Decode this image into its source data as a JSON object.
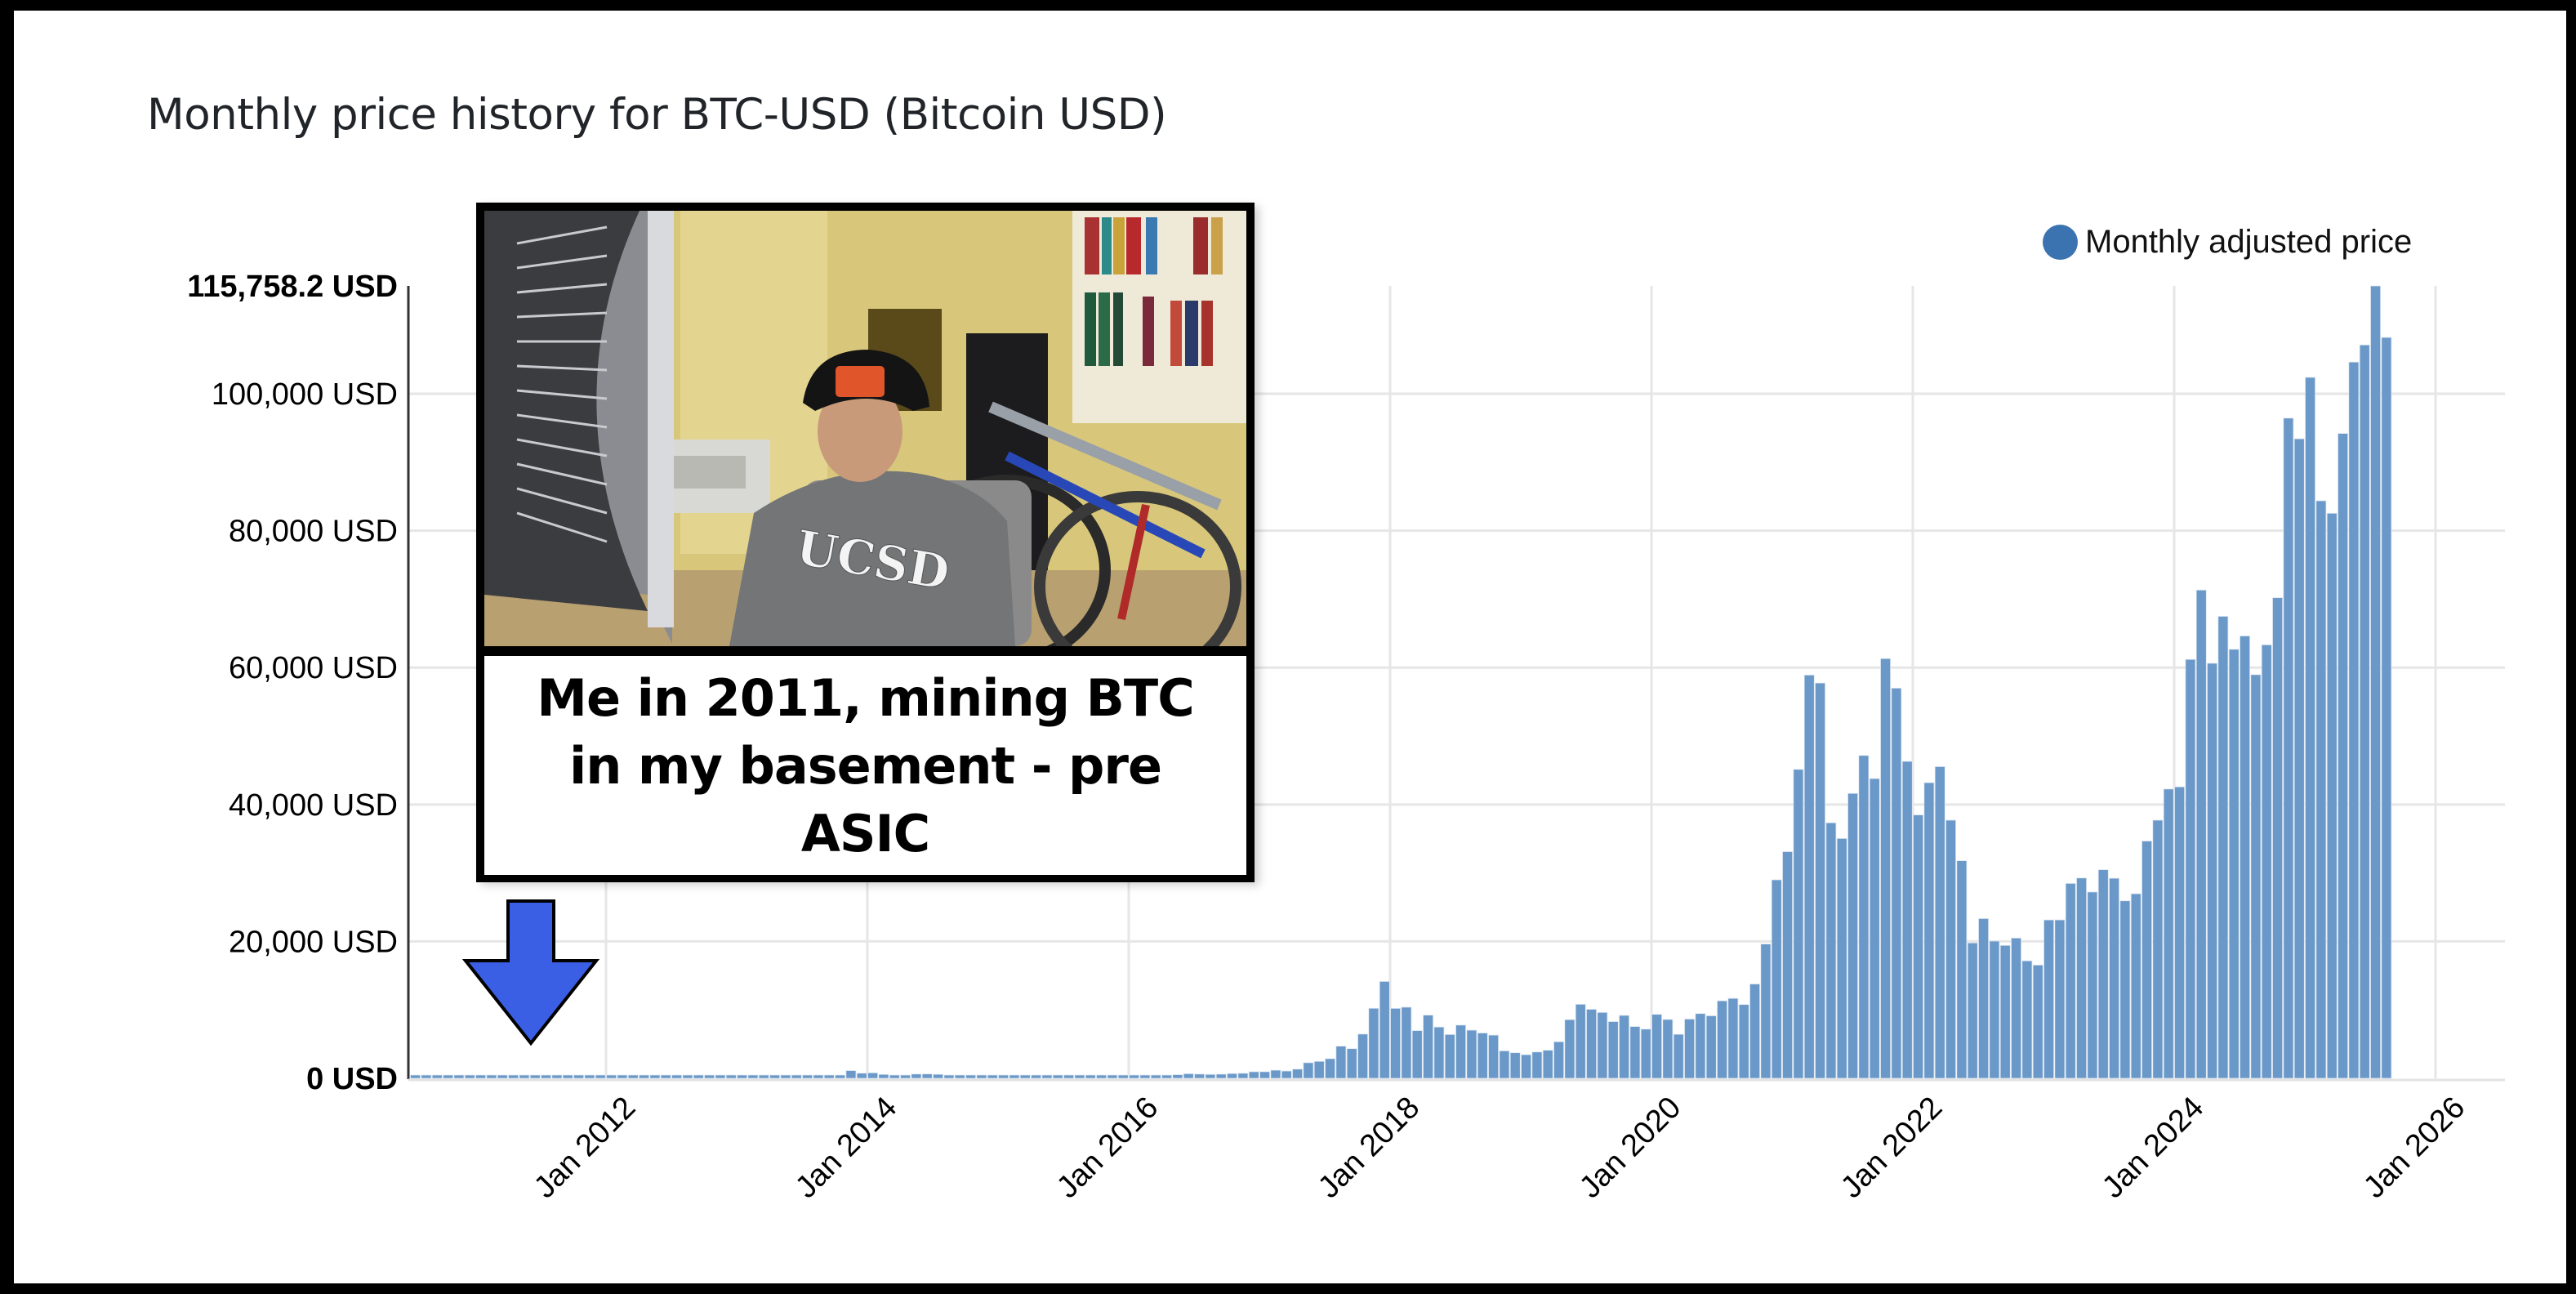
{
  "chart_title": "Monthly price history for BTC-USD (Bitcoin USD)",
  "legend": {
    "label": "Monthly adjusted price",
    "color": "#3b73b0"
  },
  "annotation": {
    "caption": "Me in 2011, mining BTC in my basement - pre ASIC",
    "photo_description": "Man in black cap and grey UCSD hoodie seated at a desk beside a computer monitor, bicycles and bookshelves behind",
    "arrow_color": "#3a5fe5",
    "arrow_icon": "down-arrow-icon"
  },
  "y_axis": {
    "max_label": "115,758.2 USD",
    "ticks": [
      {
        "value": 0,
        "label": "0 USD"
      },
      {
        "value": 20000,
        "label": "20,000 USD"
      },
      {
        "value": 40000,
        "label": "40,000 USD"
      },
      {
        "value": 60000,
        "label": "60,000 USD"
      },
      {
        "value": 80000,
        "label": "80,000 USD"
      },
      {
        "value": 100000,
        "label": "100,000 USD"
      }
    ]
  },
  "x_axis": {
    "ticks": [
      "Jan 2012",
      "Jan 2014",
      "Jan 2016",
      "Jan 2018",
      "Jan 2020",
      "Jan 2022",
      "Jan 2024",
      "Jan 2026"
    ]
  },
  "colors": {
    "bar": "#6a98c8",
    "grid": "#e6e6e6",
    "axis": "#333333"
  },
  "chart_data": {
    "type": "bar",
    "title": "Monthly price history for BTC-USD (Bitcoin USD)",
    "xlabel": "",
    "ylabel": "",
    "ylim": [
      0,
      115758.2
    ],
    "grid": true,
    "legend_position": "top-right",
    "start_month": "Jul 2010",
    "end_month": "Aug 2025",
    "series": [
      {
        "name": "Monthly adjusted price",
        "values": [
          0.07,
          0.06,
          0.06,
          0.19,
          0.21,
          0.3,
          0.5,
          0.9,
          0.8,
          3.5,
          8.7,
          16.1,
          13.4,
          8.2,
          5.1,
          3.3,
          3.0,
          4.7,
          5.5,
          4.9,
          4.9,
          5.0,
          5.2,
          6.7,
          9.4,
          10.2,
          12.4,
          11.2,
          12.6,
          13.5,
          20.4,
          33.4,
          93.0,
          139.0,
          129.0,
          97.5,
          68.5,
          106.2,
          128.0,
          198.2,
          1129.0,
          754.0,
          805.0,
          573.0,
          457.0,
          447.0,
          630.0,
          640.0,
          585.0,
          478.0,
          387.0,
          338.0,
          378.0,
          320.0,
          217.0,
          254.0,
          244.0,
          236.0,
          230.0,
          263.0,
          284.0,
          230.0,
          236.0,
          314.0,
          377.0,
          430.0,
          369.0,
          437.0,
          416.0,
          448.0,
          531.0,
          673.0,
          624.0,
          573.0,
          609.0,
          701.0,
          742.0,
          964.0,
          970.0,
          1190.0,
          1071.0,
          1348.0,
          2286.0,
          2480.0,
          2875.0,
          4703.0,
          4338.0,
          6468.0,
          10233.0,
          14156.0,
          10221.0,
          10397.0,
          6973.0,
          9240.0,
          7494.0,
          6404.0,
          7780.0,
          7037.0,
          6625.0,
          6317.0,
          4017.0,
          3742.0,
          3457.0,
          3854.0,
          4105.0,
          5350.0,
          8574.0,
          10817.0,
          10085.0,
          9630.0,
          8293.0,
          9199.0,
          7569.0,
          7193.0,
          9350.0,
          8599.0,
          6438.0,
          8658.0,
          9461.0,
          9137.0,
          11323.0,
          11681.0,
          10784.0,
          13781.0,
          19625.0,
          29001.0,
          33114.0,
          45137.0,
          58918.0,
          57750.0,
          37332.0,
          35040.0,
          41626.0,
          47166.0,
          43790.0,
          61318.0,
          57005.0,
          46306.0,
          38483.0,
          43193.0,
          45538.0,
          37714.0,
          31792.0,
          19785.0,
          23337.0,
          20050.0,
          19423.0,
          20495.0,
          17168.0,
          16548.0,
          23139.0,
          23147.0,
          28478.0,
          29268.0,
          27219.0,
          30477.0,
          29230.0,
          25931.0,
          26968.0,
          34667.0,
          37713.0,
          42265.0,
          42582.0,
          61198.0,
          71333.0,
          60636.0,
          67491.0,
          62678.0,
          64626.0,
          58969.0,
          63329.0,
          70215.0,
          96449.0,
          93429.0,
          102405.0,
          84373.0,
          82548.0,
          94207.0,
          104638.0,
          107135.0,
          115758.2,
          108236.0
        ]
      }
    ]
  }
}
